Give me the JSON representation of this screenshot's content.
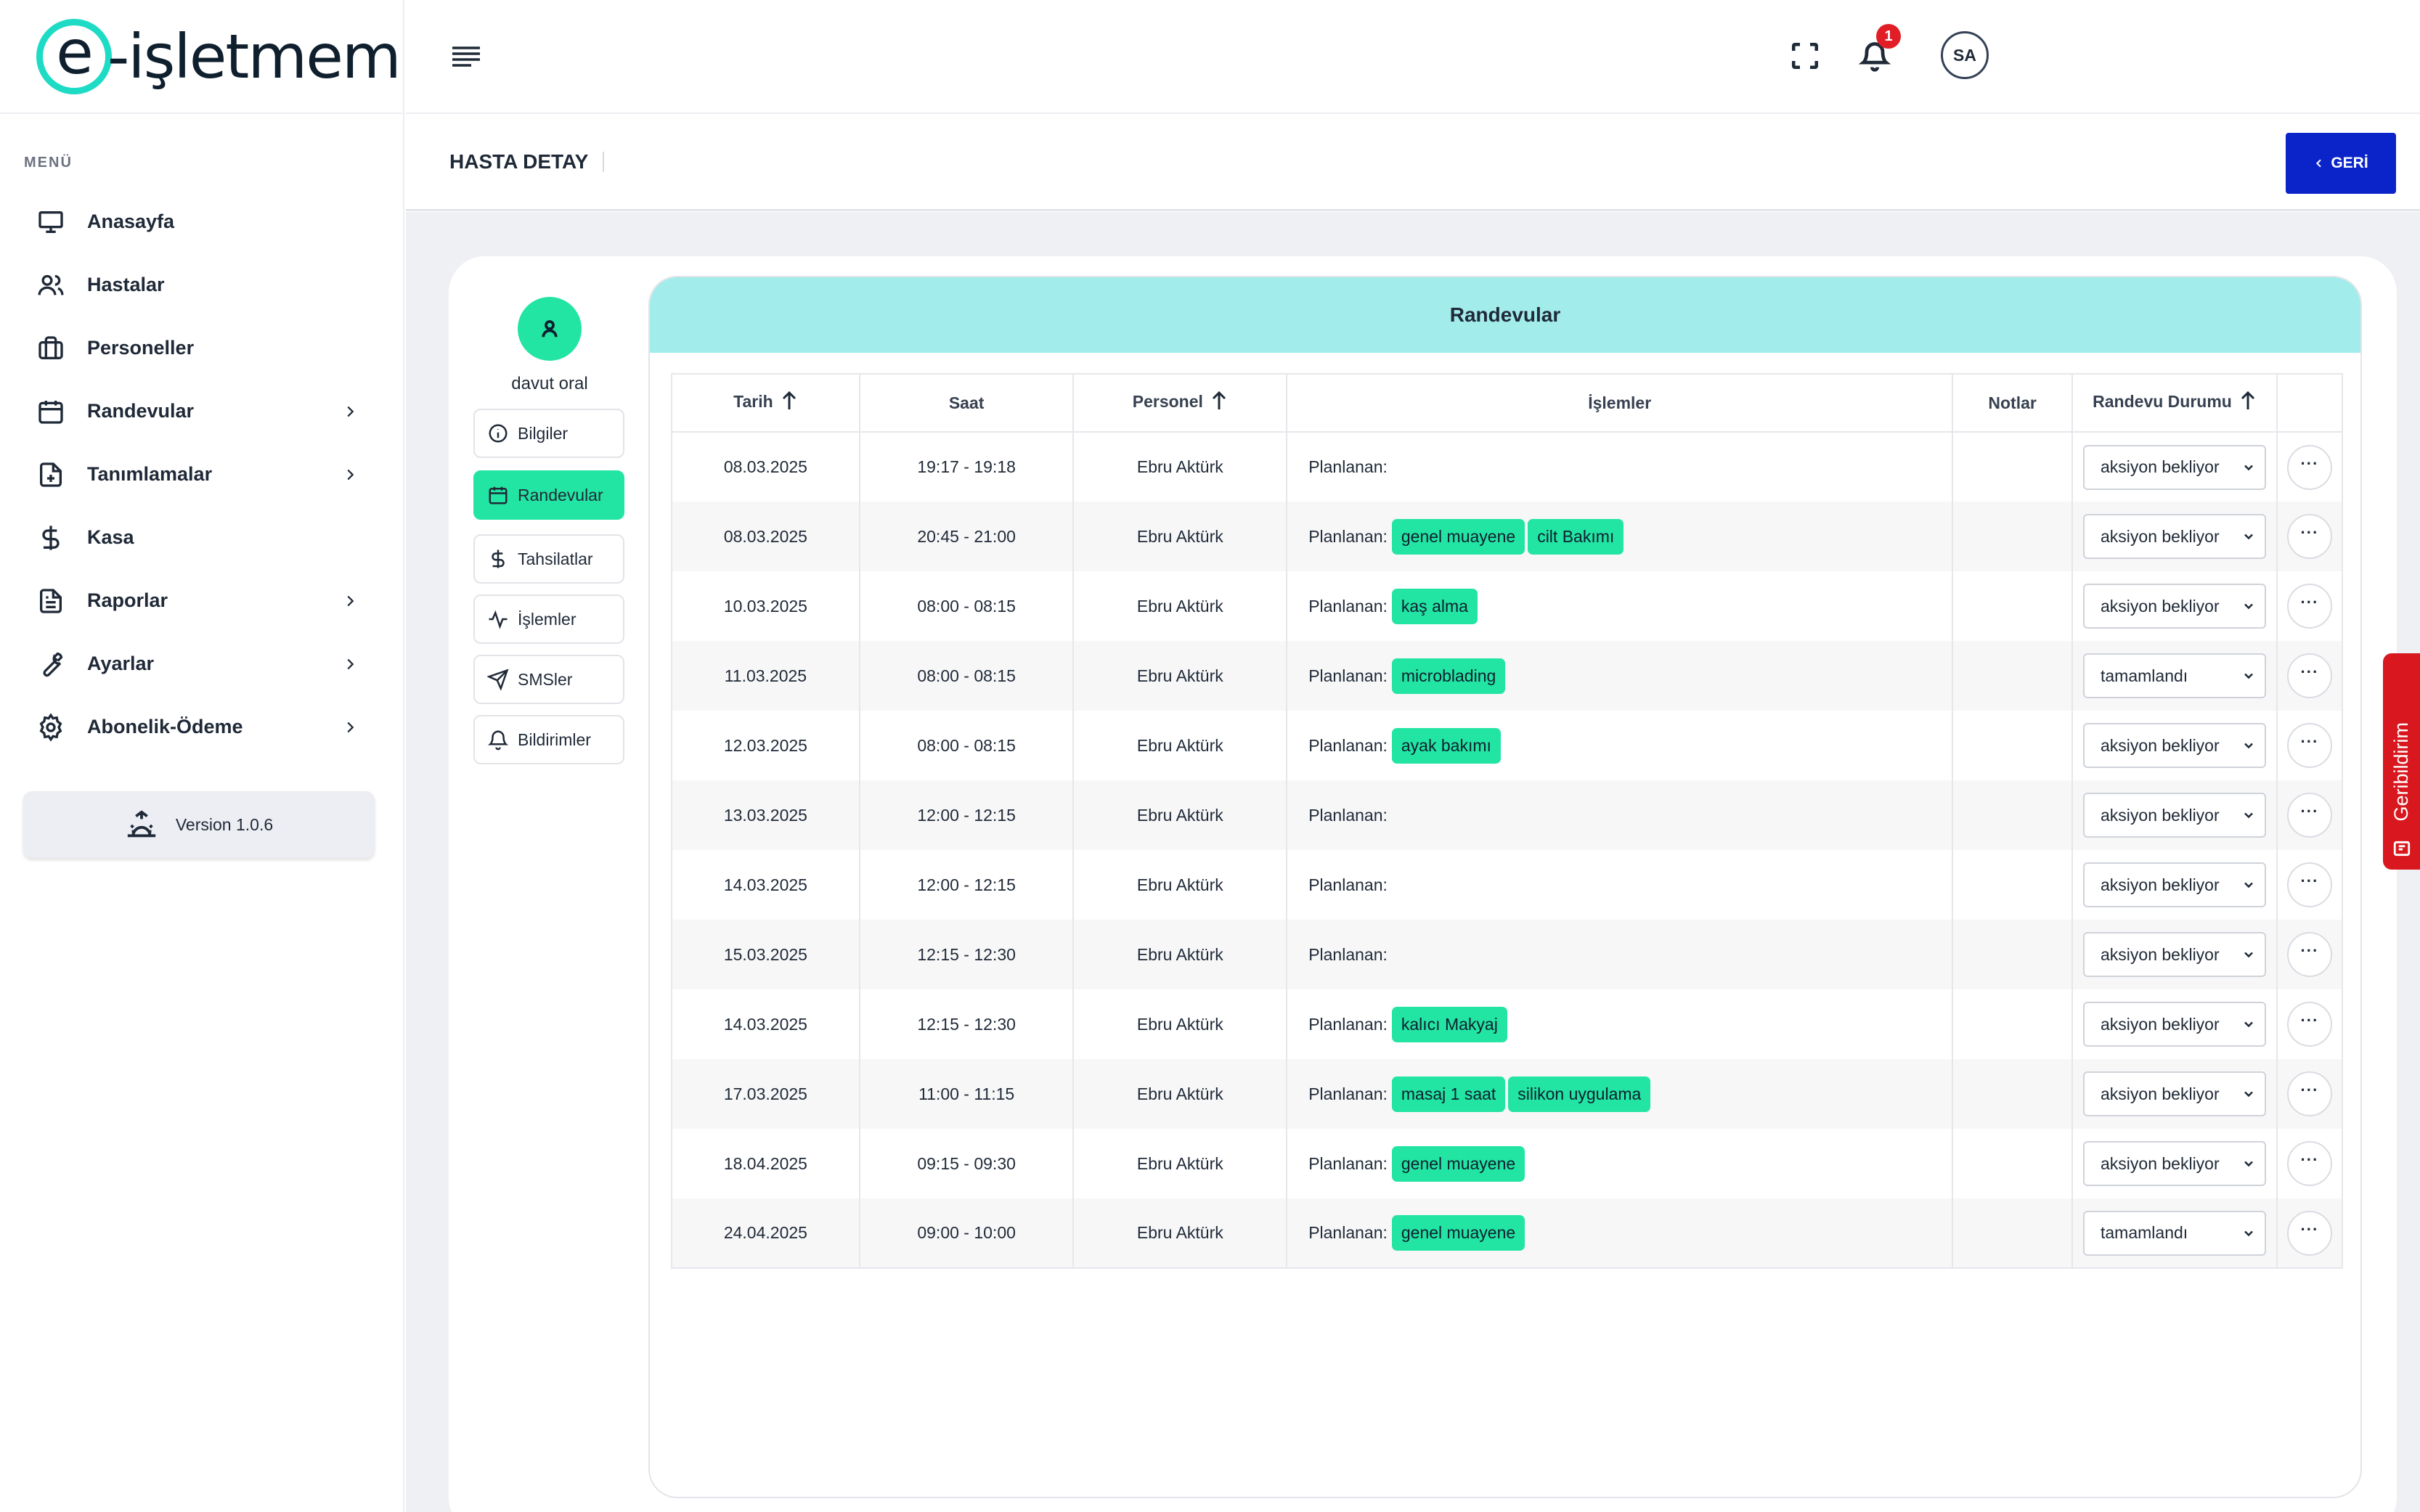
{
  "brand": {
    "logo_e": "e",
    "logo_rest": "-işletmem",
    "accent": "#1ddbc4"
  },
  "sidebar": {
    "menu_label": "MENÜ",
    "items": [
      {
        "label": "Anasayfa",
        "icon": "monitor-icon",
        "has_submenu": false
      },
      {
        "label": "Hastalar",
        "icon": "users-icon",
        "has_submenu": false
      },
      {
        "label": "Personeller",
        "icon": "briefcase-icon",
        "has_submenu": false
      },
      {
        "label": "Randevular",
        "icon": "calendar-icon",
        "has_submenu": true
      },
      {
        "label": "Tanımlamalar",
        "icon": "file-plus-icon",
        "has_submenu": true
      },
      {
        "label": "Kasa",
        "icon": "dollar-icon",
        "has_submenu": false
      },
      {
        "label": "Raporlar",
        "icon": "file-text-icon",
        "has_submenu": true
      },
      {
        "label": "Ayarlar",
        "icon": "wrench-icon",
        "has_submenu": true
      },
      {
        "label": "Abonelik-Ödeme",
        "icon": "gear-icon",
        "has_submenu": true
      }
    ],
    "version": "Version 1.0.6"
  },
  "topbar": {
    "notification_count": "1",
    "user_initials": "SA"
  },
  "page": {
    "title": "HASTA DETAY",
    "back_label": "GERİ"
  },
  "profile": {
    "name": "davut oral",
    "tabs": [
      {
        "label": "Bilgiler",
        "icon": "info-icon",
        "active": false
      },
      {
        "label": "Randevular",
        "icon": "calendar-icon",
        "active": true
      },
      {
        "label": "Tahsilatlar",
        "icon": "dollar-icon",
        "active": false
      },
      {
        "label": "İşlemler",
        "icon": "activity-icon",
        "active": false
      },
      {
        "label": "SMSler",
        "icon": "send-icon",
        "active": false
      },
      {
        "label": "Bildirimler",
        "icon": "bell-icon",
        "active": false
      }
    ]
  },
  "appointments": {
    "title": "Randevular",
    "columns": {
      "date": "Tarih",
      "time": "Saat",
      "staff": "Personel",
      "ops": "İşlemler",
      "notes": "Notlar",
      "status": "Randevu Durumu"
    },
    "planned_label": "Planlanan:",
    "rows": [
      {
        "date": "08.03.2025",
        "time": "19:17 - 19:18",
        "staff": "Ebru Aktürk",
        "tags": [],
        "notes": "",
        "status": "aksiyon bekliyor"
      },
      {
        "date": "08.03.2025",
        "time": "20:45 - 21:00",
        "staff": "Ebru Aktürk",
        "tags": [
          "genel muayene",
          "cilt Bakımı"
        ],
        "notes": "",
        "status": "aksiyon bekliyor"
      },
      {
        "date": "10.03.2025",
        "time": "08:00 - 08:15",
        "staff": "Ebru Aktürk",
        "tags": [
          "kaş alma"
        ],
        "notes": "",
        "status": "aksiyon bekliyor"
      },
      {
        "date": "11.03.2025",
        "time": "08:00 - 08:15",
        "staff": "Ebru Aktürk",
        "tags": [
          "microblading"
        ],
        "notes": "",
        "status": "tamamlandı"
      },
      {
        "date": "12.03.2025",
        "time": "08:00 - 08:15",
        "staff": "Ebru Aktürk",
        "tags": [
          "ayak bakımı"
        ],
        "notes": "",
        "status": "aksiyon bekliyor"
      },
      {
        "date": "13.03.2025",
        "time": "12:00 - 12:15",
        "staff": "Ebru Aktürk",
        "tags": [],
        "notes": "",
        "status": "aksiyon bekliyor"
      },
      {
        "date": "14.03.2025",
        "time": "12:00 - 12:15",
        "staff": "Ebru Aktürk",
        "tags": [],
        "notes": "",
        "status": "aksiyon bekliyor"
      },
      {
        "date": "15.03.2025",
        "time": "12:15 - 12:30",
        "staff": "Ebru Aktürk",
        "tags": [],
        "notes": "",
        "status": "aksiyon bekliyor"
      },
      {
        "date": "14.03.2025",
        "time": "12:15 - 12:30",
        "staff": "Ebru Aktürk",
        "tags": [
          "kalıcı Makyaj"
        ],
        "notes": "",
        "status": "aksiyon bekliyor"
      },
      {
        "date": "17.03.2025",
        "time": "11:00 - 11:15",
        "staff": "Ebru Aktürk",
        "tags": [
          "masaj 1 saat",
          "silikon uygulama"
        ],
        "notes": "",
        "status": "aksiyon bekliyor"
      },
      {
        "date": "18.04.2025",
        "time": "09:15 - 09:30",
        "staff": "Ebru Aktürk",
        "tags": [
          "genel muayene"
        ],
        "notes": "",
        "status": "aksiyon bekliyor"
      },
      {
        "date": "24.04.2025",
        "time": "09:00 - 10:00",
        "staff": "Ebru Aktürk",
        "tags": [
          "genel muayene"
        ],
        "notes": "",
        "status": "tamamlandı"
      }
    ],
    "more_label": "···"
  },
  "feedback": {
    "label": "Geribildirim"
  },
  "colors": {
    "tag_green": "#22e5a3",
    "header_cyan": "#a2ecec",
    "primary_blue": "#0a24c9",
    "badge_red": "#e11d26",
    "feedback_red": "#d8171e"
  }
}
